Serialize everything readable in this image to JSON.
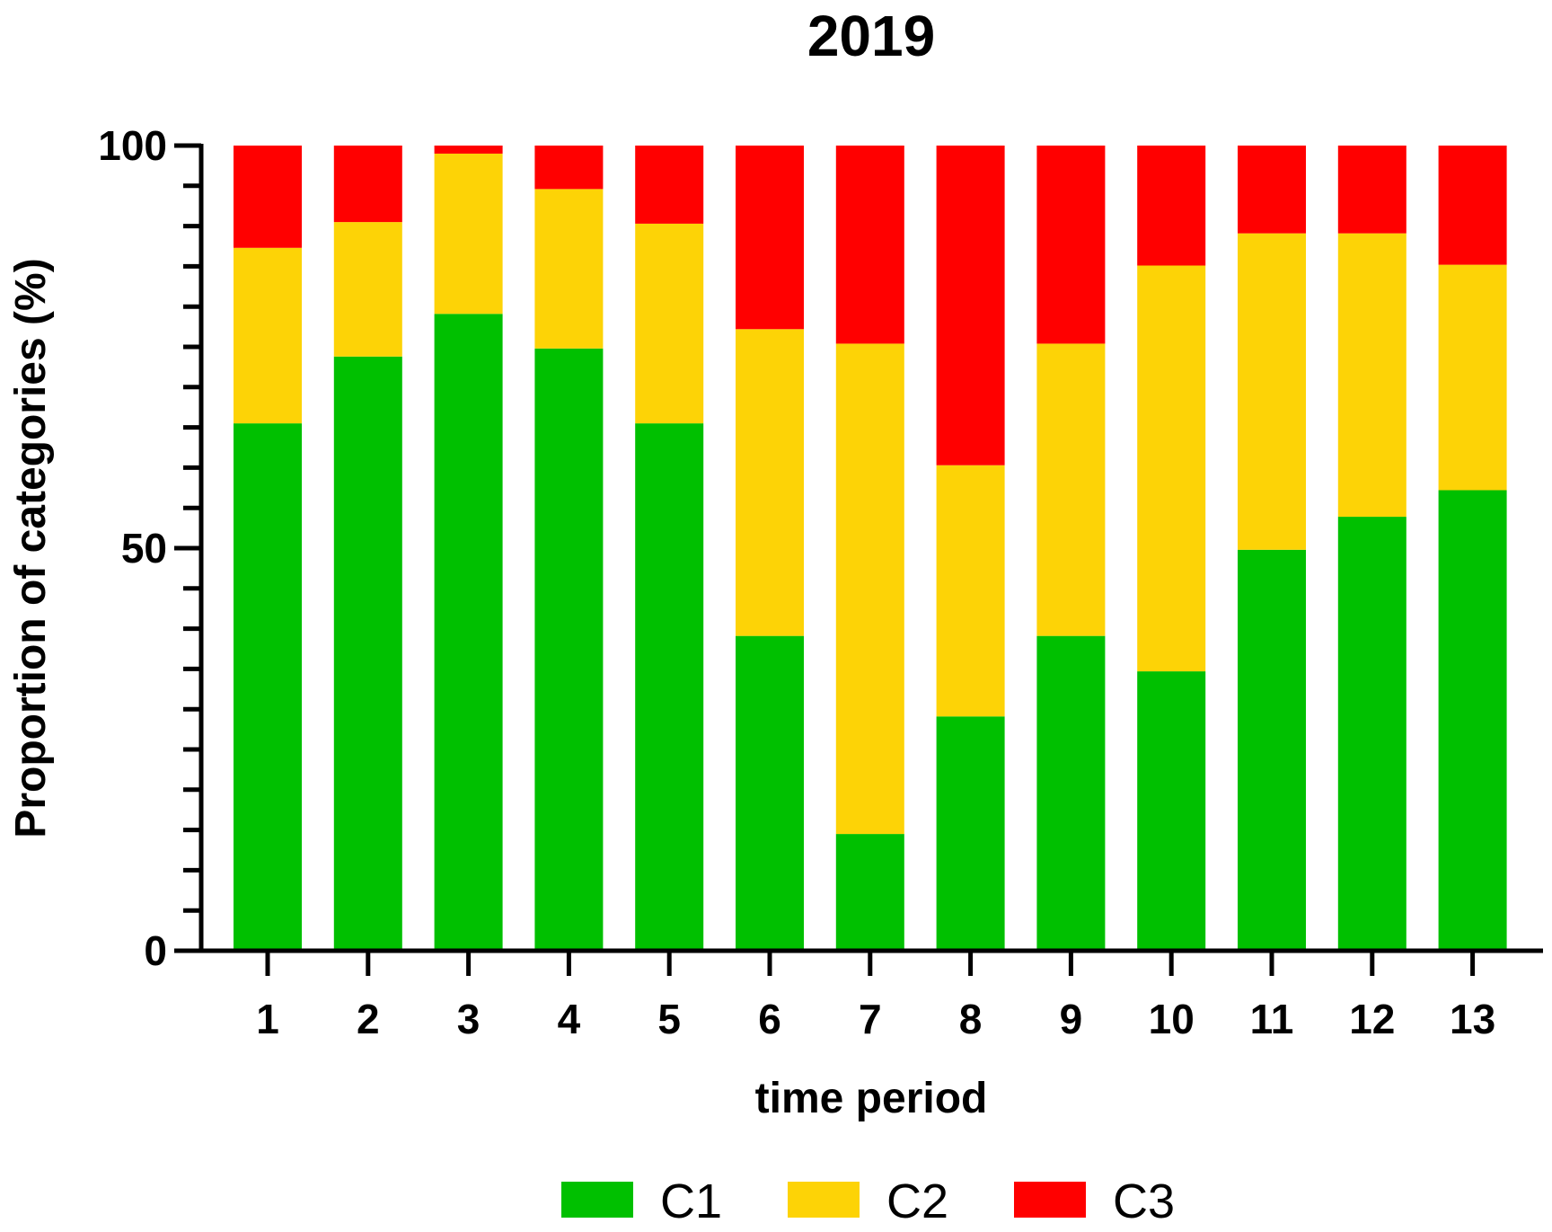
{
  "chart_data": {
    "type": "bar",
    "stacked": true,
    "title": "2019",
    "xlabel": "time period",
    "ylabel": "Proportion of categories (%)",
    "ylim": [
      0,
      100
    ],
    "y_major_ticks": [
      0,
      50,
      100
    ],
    "y_minor_tick_step": 5,
    "categories": [
      "1",
      "2",
      "3",
      "4",
      "5",
      "6",
      "7",
      "8",
      "9",
      "10",
      "11",
      "12",
      "13"
    ],
    "series": [
      {
        "name": "C1",
        "color": "#00c000",
        "values": [
          65.5,
          73.8,
          79.1,
          74.8,
          65.5,
          39.1,
          14.5,
          29.1,
          39.1,
          34.7,
          49.8,
          53.9,
          57.2
        ]
      },
      {
        "name": "C2",
        "color": "#fdd306",
        "values": [
          21.8,
          16.7,
          19.9,
          19.8,
          24.8,
          38.1,
          60.9,
          31.2,
          36.3,
          50.4,
          39.3,
          35.2,
          28.0
        ]
      },
      {
        "name": "C3",
        "color": "#ff0000",
        "values": [
          12.7,
          9.5,
          1.0,
          5.4,
          9.7,
          22.8,
          24.6,
          39.7,
          24.6,
          14.9,
          10.9,
          10.9,
          14.8
        ]
      }
    ],
    "legend_position": "bottom"
  }
}
